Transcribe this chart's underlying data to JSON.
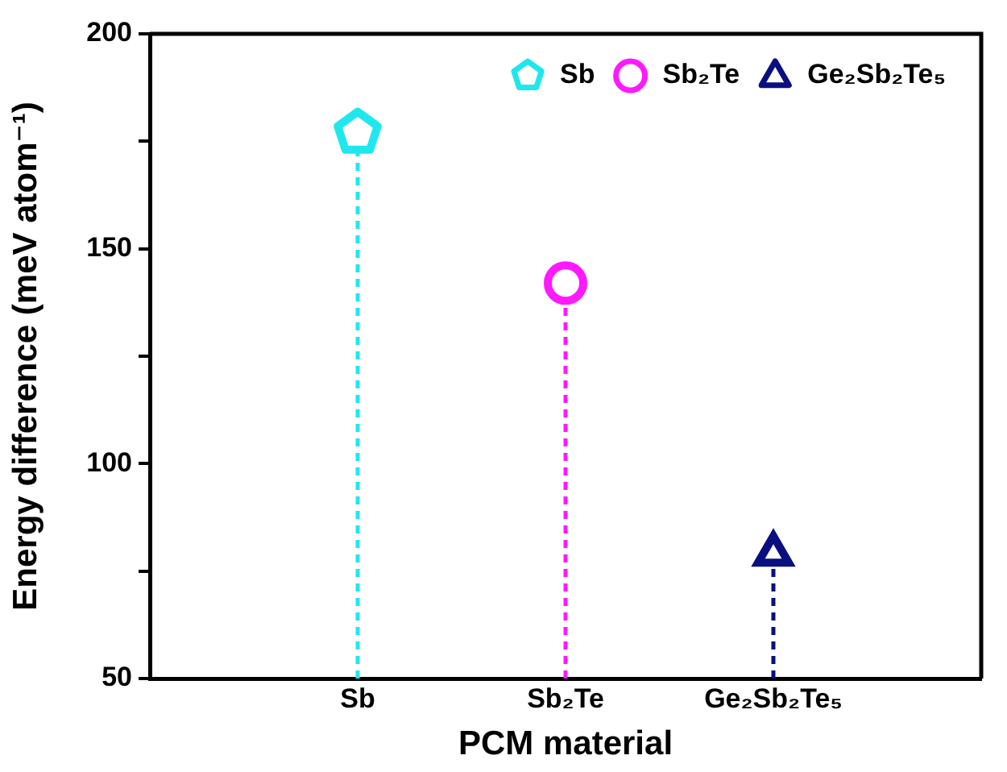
{
  "chart_data": {
    "type": "lollipop",
    "xlabel": "PCM material",
    "ylabel": "Energy difference (meV atom⁻¹)",
    "categories": [
      "Sb",
      "Sb₂Te",
      "Ge₂Sb₂Te₅"
    ],
    "series": [
      {
        "name": "Sb",
        "color": "#1ee8ee",
        "values": [
          177,
          null,
          null
        ]
      },
      {
        "name": "Sb₂Te",
        "color": "#ff19ff",
        "marker": "circle",
        "values": [
          null,
          142,
          null
        ]
      },
      {
        "name": "Ge₂Sb₂Te₅",
        "color": "#0a0f80",
        "marker": "triangle",
        "values": [
          null,
          null,
          79
        ]
      }
    ],
    "ylim": [
      50,
      200
    ],
    "yticks": [
      50,
      {
        "value": 75,
        "label": null
      },
      100,
      {
        "value": 125,
        "label": null
      },
      150,
      {
        "value": 175,
        "label": null
      },
      200
    ],
    "grid": false,
    "legend": "top right",
    "line_style": "dashed"
  }
}
